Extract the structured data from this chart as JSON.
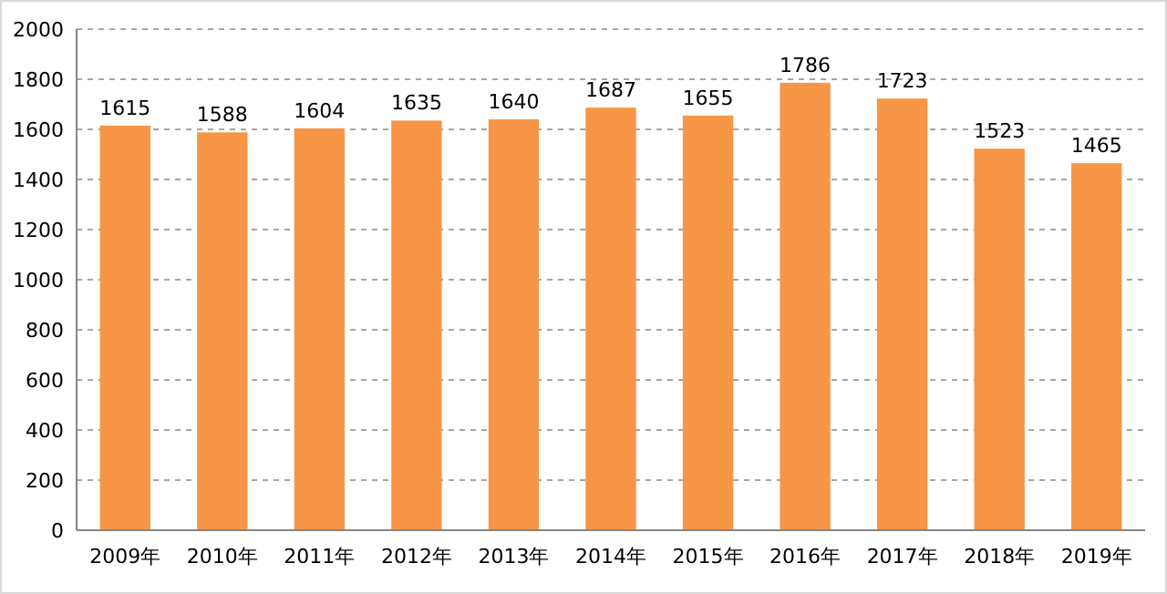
{
  "chart_data": {
    "type": "bar",
    "categories": [
      "2009年",
      "2010年",
      "2011年",
      "2012年",
      "2013年",
      "2014年",
      "2015年",
      "2016年",
      "2017年",
      "2018年",
      "2019年"
    ],
    "values": [
      1615,
      1588,
      1604,
      1635,
      1640,
      1687,
      1655,
      1786,
      1723,
      1523,
      1465
    ],
    "color": "#f79646",
    "ylim": [
      0,
      2000
    ],
    "yticks": [
      0,
      200,
      400,
      600,
      800,
      1000,
      1200,
      1400,
      1600,
      1800,
      2000
    ],
    "grid": "y",
    "data_labels": true
  }
}
